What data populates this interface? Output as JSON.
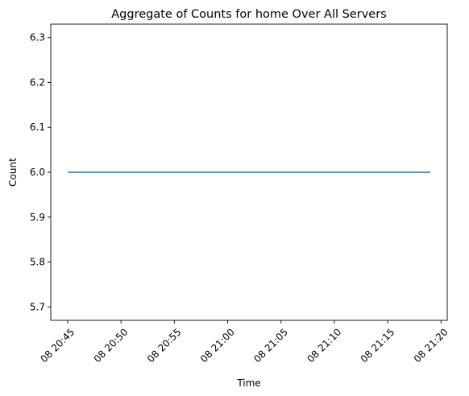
{
  "chart_data": {
    "type": "line",
    "title": "Aggregate of Counts for home Over All Servers",
    "xlabel": "Time",
    "ylabel": "Count",
    "x_range": [
      "08 20:43:25",
      "08 21:20:35"
    ],
    "ylim": [
      5.67,
      6.33
    ],
    "x_ticks": [
      "08 20:45",
      "08 20:50",
      "08 20:55",
      "08 21:00",
      "08 21:05",
      "08 21:10",
      "08 21:15",
      "08 21:20"
    ],
    "y_ticks": [
      "5.7",
      "5.8",
      "5.9",
      "6.0",
      "6.1",
      "6.2",
      "6.3"
    ],
    "grid": false,
    "series": [
      {
        "color": "#1f77b4",
        "x": [
          "08 20:45",
          "08 21:19"
        ],
        "y": [
          6.0,
          6.0
        ]
      }
    ]
  }
}
